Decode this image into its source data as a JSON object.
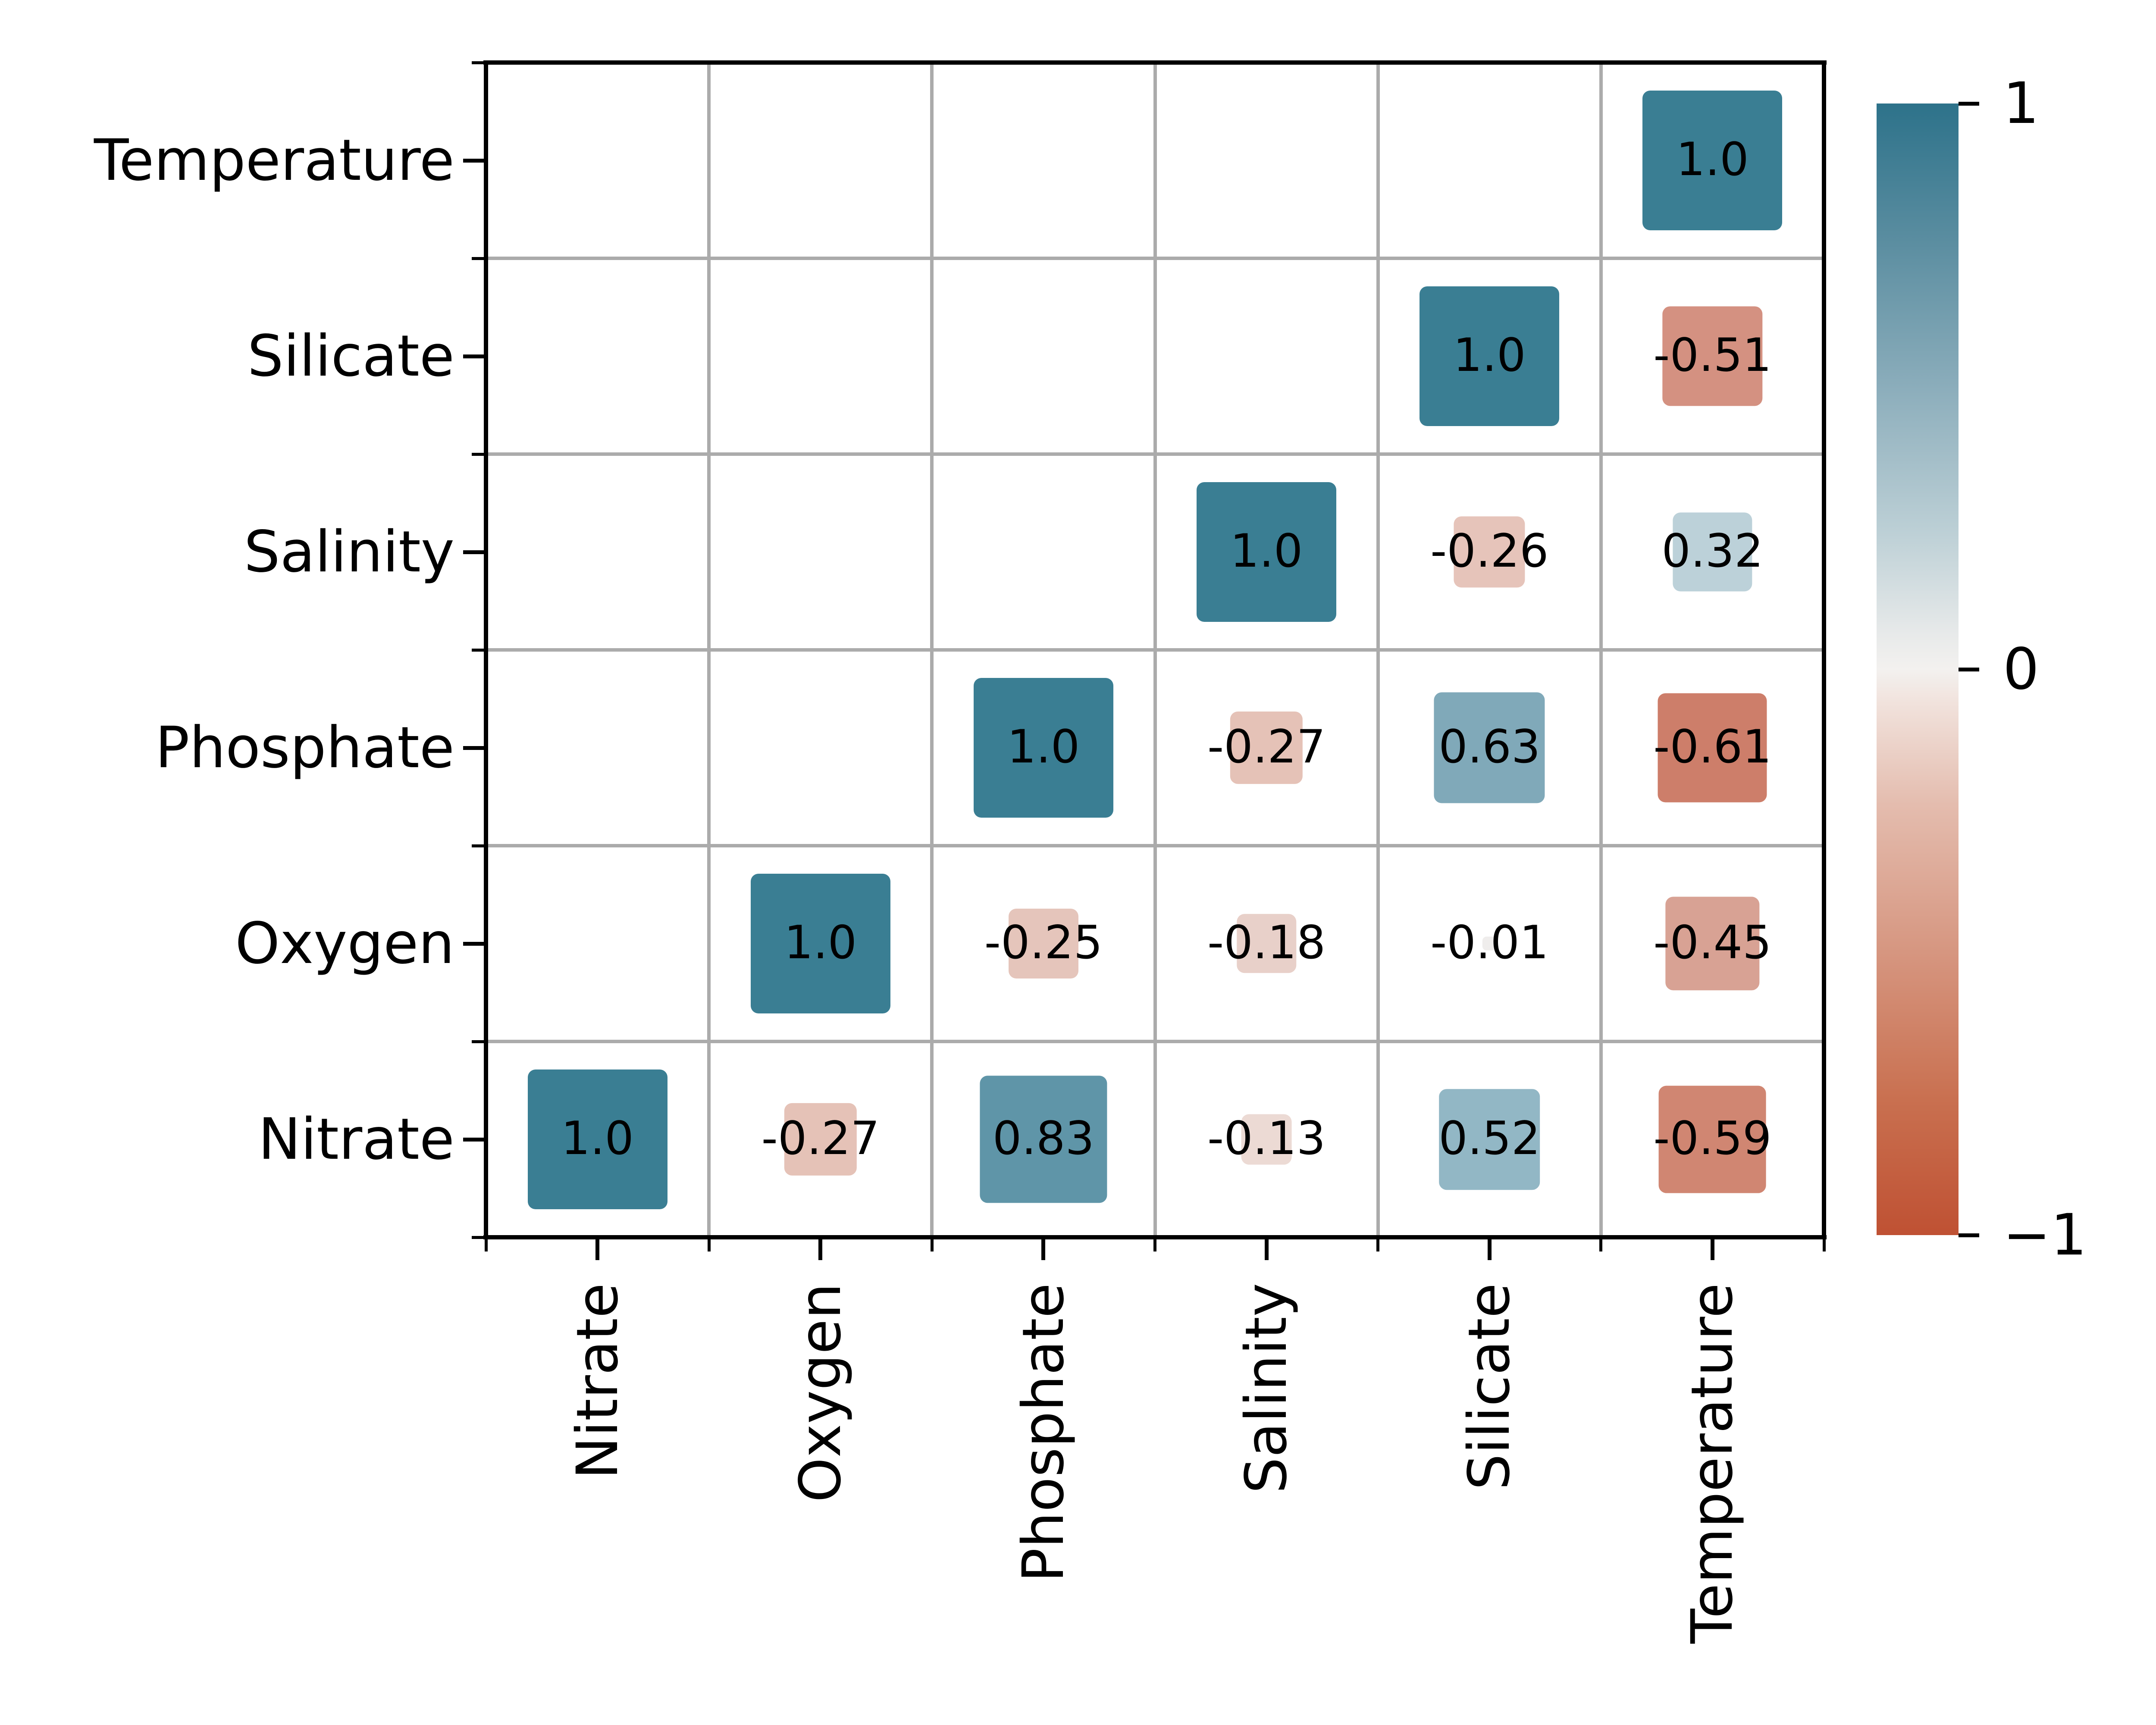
{
  "figure": {
    "background": "#ffffff",
    "description": "Lower-triangle correlation matrix, square size proportional to |r|, diverging teal-to-red colormap with colorbar"
  },
  "style": {
    "spine_color": "#000000",
    "grid_color": "#ababab",
    "text_color": "#000000",
    "positive_end_color": "#3a7e93",
    "negative_end_color": "#bf5133",
    "zero_color": "#f3f1ef"
  },
  "chart_data": {
    "type": "heatmap",
    "subtype": "correlation-matrix-lower-triangle",
    "grid": true,
    "value_range": [
      -1,
      1
    ],
    "marker_rule": "square side proportional to sqrt(|r|)",
    "x_categories": [
      "Nitrate",
      "Oxygen",
      "Phosphate",
      "Salinity",
      "Silicate",
      "Temperature"
    ],
    "y_categories_top_to_bottom": [
      "Temperature",
      "Silicate",
      "Salinity",
      "Phosphate",
      "Oxygen",
      "Nitrate"
    ],
    "cells": [
      {
        "row": "Temperature",
        "col": "Temperature",
        "value": 1.0,
        "label": "1.0",
        "color": "#3a7e93"
      },
      {
        "row": "Silicate",
        "col": "Silicate",
        "value": 1.0,
        "label": "1.0",
        "color": "#3a7e93"
      },
      {
        "row": "Silicate",
        "col": "Temperature",
        "value": -0.51,
        "label": "-0.51",
        "color": "#d49181"
      },
      {
        "row": "Salinity",
        "col": "Salinity",
        "value": 1.0,
        "label": "1.0",
        "color": "#3a7e93"
      },
      {
        "row": "Salinity",
        "col": "Silicate",
        "value": -0.26,
        "label": "-0.26",
        "color": "#e6c4ba"
      },
      {
        "row": "Salinity",
        "col": "Temperature",
        "value": 0.32,
        "label": "0.32",
        "color": "#bcd1d9"
      },
      {
        "row": "Phosphate",
        "col": "Phosphate",
        "value": 1.0,
        "label": "1.0",
        "color": "#3a7e93"
      },
      {
        "row": "Phosphate",
        "col": "Salinity",
        "value": -0.27,
        "label": "-0.27",
        "color": "#e5c2b7"
      },
      {
        "row": "Phosphate",
        "col": "Silicate",
        "value": 0.63,
        "label": "0.63",
        "color": "#80a9b9"
      },
      {
        "row": "Phosphate",
        "col": "Temperature",
        "value": -0.61,
        "label": "-0.61",
        "color": "#cd7e6a"
      },
      {
        "row": "Oxygen",
        "col": "Oxygen",
        "value": 1.0,
        "label": "1.0",
        "color": "#3a7e93"
      },
      {
        "row": "Oxygen",
        "col": "Phosphate",
        "value": -0.25,
        "label": "-0.25",
        "color": "#e5c5bb"
      },
      {
        "row": "Oxygen",
        "col": "Salinity",
        "value": -0.18,
        "label": "-0.18",
        "color": "#e8d0c9"
      },
      {
        "row": "Oxygen",
        "col": "Silicate",
        "value": -0.01,
        "label": "-0.01",
        "color": "#efedec"
      },
      {
        "row": "Oxygen",
        "col": "Temperature",
        "value": -0.45,
        "label": "-0.45",
        "color": "#d8a294"
      },
      {
        "row": "Nitrate",
        "col": "Nitrate",
        "value": 1.0,
        "label": "1.0",
        "color": "#3a7e93"
      },
      {
        "row": "Nitrate",
        "col": "Oxygen",
        "value": -0.27,
        "label": "-0.27",
        "color": "#e5c2b7"
      },
      {
        "row": "Nitrate",
        "col": "Phosphate",
        "value": 0.83,
        "label": "0.83",
        "color": "#5f95a8"
      },
      {
        "row": "Nitrate",
        "col": "Salinity",
        "value": -0.13,
        "label": "-0.13",
        "color": "#ecdad4"
      },
      {
        "row": "Nitrate",
        "col": "Silicate",
        "value": 0.52,
        "label": "0.52",
        "color": "#92b7c5"
      },
      {
        "row": "Nitrate",
        "col": "Temperature",
        "value": -0.59,
        "label": "-0.59",
        "color": "#d08672"
      }
    ],
    "colorbar": {
      "position": "right",
      "ticks": [
        {
          "label": "1",
          "value": 1
        },
        {
          "label": "0",
          "value": 0
        },
        {
          "label": "−1",
          "value": -1
        }
      ],
      "gradient_stops": [
        {
          "pos": 0.0,
          "color": "#2d728a"
        },
        {
          "pos": 0.12,
          "color": "#5a8da0"
        },
        {
          "pos": 0.25,
          "color": "#8badbb"
        },
        {
          "pos": 0.38,
          "color": "#bdd0d6"
        },
        {
          "pos": 0.47,
          "color": "#e8eaea"
        },
        {
          "pos": 0.5,
          "color": "#f3f1ef"
        },
        {
          "pos": 0.53,
          "color": "#f1e2dc"
        },
        {
          "pos": 0.62,
          "color": "#e4bcae"
        },
        {
          "pos": 0.75,
          "color": "#d69680"
        },
        {
          "pos": 0.88,
          "color": "#c97050"
        },
        {
          "pos": 1.0,
          "color": "#bf5133"
        }
      ]
    }
  }
}
